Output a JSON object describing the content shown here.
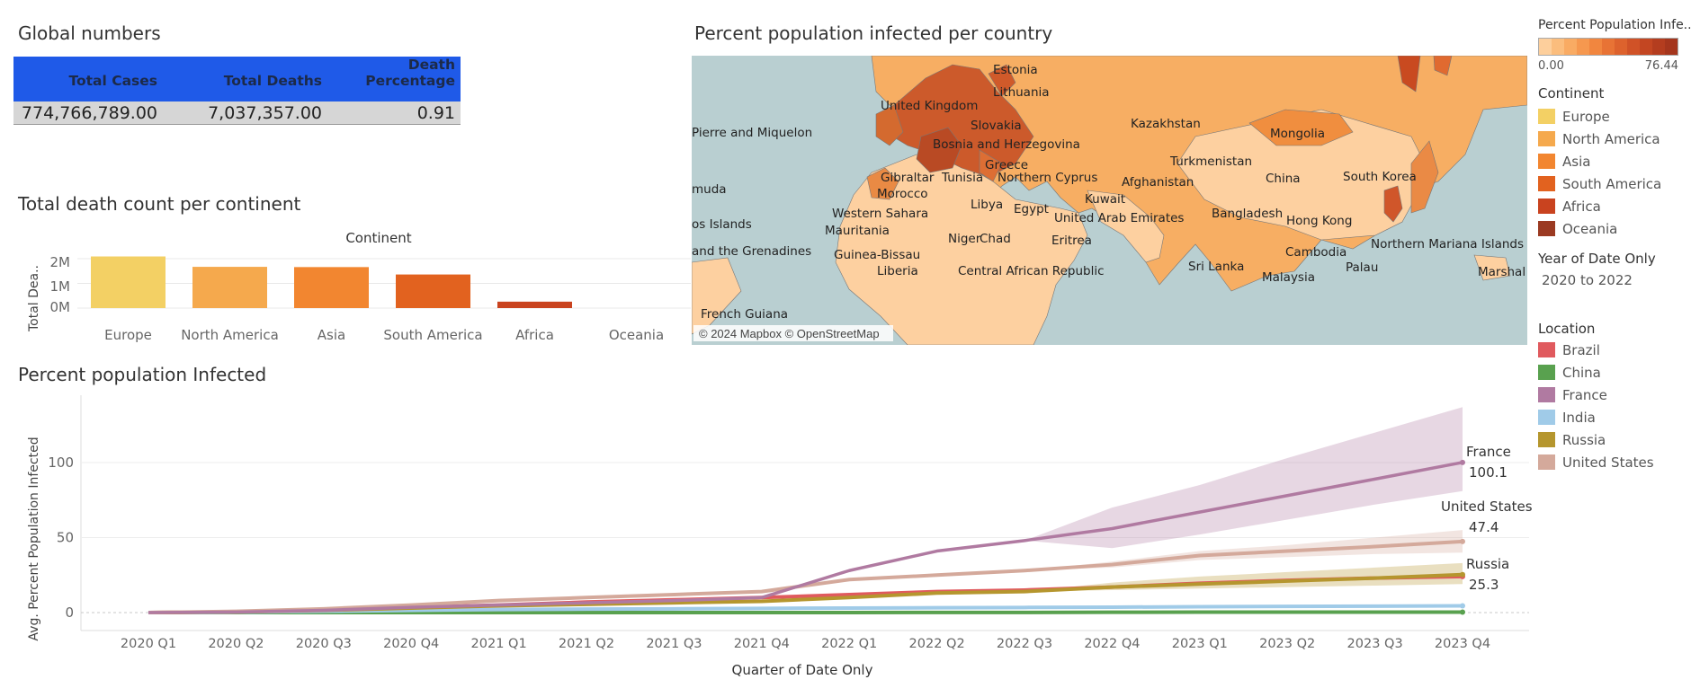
{
  "global": {
    "title": "Global numbers",
    "headers": [
      "Total Cases",
      "Total Deaths",
      "Death Percentage"
    ],
    "values": [
      "774,766,789.00",
      "7,037,357.00",
      "0.91"
    ]
  },
  "continent_chart": {
    "title": "Total death count per continent",
    "header": "Continent",
    "ylabel": "Total Dea..",
    "yticks": [
      "2M",
      "1M",
      "0M"
    ]
  },
  "map": {
    "title": "Percent population infected per country",
    "attribution": "© 2024 Mapbox © OpenStreetMap",
    "labels": [
      "Estonia",
      "Lithuania",
      "United Kingdom",
      "Slovakia",
      "Bosnia and Herzegovina",
      "Greece",
      "Kazakhstan",
      "Mongolia",
      "Turkmenistan",
      "Afghanistan",
      "China",
      "South Korea",
      "Gibraltar",
      "Tunisia",
      "Northern Cyprus",
      "Kuwait",
      "Morocco",
      "Libya",
      "Egypt",
      "United Arab Emirates",
      "Western Sahara",
      "Bangladesh",
      "Hong Kong",
      "Mauritania",
      "Niger",
      "Chad",
      "Eritrea",
      "Northern Mariana Islands",
      "Guinea-Bissau",
      "Cambodia",
      "Liberia",
      "Central African Republic",
      "Sri Lanka",
      "Palau",
      "Malaysia",
      "Marshal",
      "Pierre and Miquelon",
      "muda",
      "os Islands",
      "and the Grenadines",
      "French Guiana"
    ]
  },
  "line_chart": {
    "title": "Percent population Infected",
    "ylabel": "Avg. Percent Population Infected",
    "xlabel": "Quarter of Date Only",
    "end_labels": [
      {
        "name": "France",
        "value": "100.1"
      },
      {
        "name": "United States",
        "value": "47.4"
      },
      {
        "name": "Russia",
        "value": "25.3"
      }
    ]
  },
  "legend": {
    "color_title": "Percent Population Infe..",
    "color_min": "0.00",
    "color_max": "76.44",
    "continent_title": "Continent",
    "continents": [
      {
        "name": "Europe",
        "color": "#f3d064"
      },
      {
        "name": "North America",
        "color": "#f5a94d"
      },
      {
        "name": "Asia",
        "color": "#f28630"
      },
      {
        "name": "South America",
        "color": "#e2621f"
      },
      {
        "name": "Africa",
        "color": "#c9431f"
      },
      {
        "name": "Oceania",
        "color": "#9b3a22"
      }
    ],
    "year_title": "Year of Date Only",
    "year_value": "2020 to 2022",
    "location_title": "Location",
    "locations": [
      {
        "name": "Brazil",
        "color": "#e05a5e"
      },
      {
        "name": "China",
        "color": "#59a14f"
      },
      {
        "name": "France",
        "color": "#b07aa1"
      },
      {
        "name": "India",
        "color": "#a0cbe8"
      },
      {
        "name": "Russia",
        "color": "#b5962e"
      },
      {
        "name": "United States",
        "color": "#d4a99b"
      }
    ]
  },
  "chart_data": [
    {
      "type": "bar",
      "title": "Total death count per continent",
      "xlabel": "Continent",
      "ylabel": "Total Dea..",
      "categories": [
        "Europe",
        "North America",
        "Asia",
        "South America",
        "Africa",
        "Oceania"
      ],
      "values": [
        2090000,
        1670000,
        1660000,
        1360000,
        260000,
        0
      ],
      "colors": [
        "#f3d064",
        "#f5a94d",
        "#f28630",
        "#e2621f",
        "#c9431f",
        "#9b3a22"
      ],
      "ylim": [
        0,
        2400000
      ],
      "grid": true
    },
    {
      "type": "line",
      "title": "Percent population Infected",
      "xlabel": "Quarter of Date Only",
      "ylabel": "Avg. Percent Population Infected",
      "categories": [
        "2020 Q1",
        "2020 Q2",
        "2020 Q3",
        "2020 Q4",
        "2021 Q1",
        "2021 Q2",
        "2021 Q3",
        "2021 Q4",
        "2022 Q1",
        "2022 Q2",
        "2022 Q3",
        "2022 Q4",
        "2023 Q1",
        "2023 Q2",
        "2023 Q3",
        "2023 Q4"
      ],
      "yticks": [
        0,
        50,
        100
      ],
      "ylim": [
        -4,
        136
      ],
      "grid": true,
      "series": [
        {
          "name": "France",
          "color": "#b07aa1",
          "values": [
            0,
            0.3,
            1.5,
            3.5,
            5,
            6.5,
            8,
            10,
            28,
            41,
            48,
            56,
            67,
            78,
            89,
            100.1
          ],
          "band_upper": [
            null,
            null,
            null,
            null,
            null,
            null,
            null,
            null,
            null,
            null,
            48,
            70,
            85,
            103,
            120,
            137
          ],
          "band_lower": [
            null,
            null,
            null,
            null,
            null,
            null,
            null,
            null,
            null,
            null,
            48,
            43,
            52,
            62,
            72,
            81
          ]
        },
        {
          "name": "United States",
          "color": "#d4a99b",
          "values": [
            0,
            0.8,
            2.5,
            5,
            8,
            10,
            12,
            14,
            22,
            25,
            28,
            32,
            38,
            41,
            44,
            47.4
          ],
          "band_upper": [
            null,
            null,
            null,
            null,
            null,
            null,
            null,
            null,
            null,
            null,
            28,
            34,
            41,
            45,
            50,
            55
          ],
          "band_lower": [
            null,
            null,
            null,
            null,
            null,
            null,
            null,
            null,
            null,
            null,
            28,
            30,
            35,
            37,
            39,
            40
          ]
        },
        {
          "name": "Russia",
          "color": "#b5962e",
          "values": [
            0,
            0.4,
            1.5,
            3,
            4.5,
            5.5,
            6.5,
            7.5,
            10,
            13,
            14,
            17,
            19,
            21,
            23,
            25.3
          ],
          "band_upper": [
            null,
            null,
            null,
            null,
            null,
            null,
            null,
            null,
            null,
            null,
            14,
            20,
            24,
            27,
            30,
            33
          ],
          "band_lower": [
            null,
            null,
            null,
            null,
            null,
            null,
            null,
            null,
            null,
            null,
            14,
            15,
            16,
            17,
            18,
            19
          ]
        },
        {
          "name": "Brazil",
          "color": "#e05a5e",
          "values": [
            0,
            0.5,
            2,
            3.5,
            5,
            7,
            8.5,
            10,
            12,
            14,
            15,
            17,
            19.5,
            21.5,
            23,
            24
          ]
        },
        {
          "name": "India",
          "color": "#a0cbe8",
          "values": [
            0,
            0.2,
            0.8,
            1.5,
            2,
            2.3,
            2.5,
            2.8,
            3,
            3.2,
            3.4,
            3.6,
            3.9,
            4.1,
            4.3,
            4.5
          ]
        },
        {
          "name": "China",
          "color": "#59a14f",
          "values": [
            0,
            0.01,
            0.01,
            0.01,
            0.01,
            0.01,
            0.01,
            0.01,
            0.02,
            0.05,
            0.1,
            0.2,
            0.3,
            0.3,
            0.3,
            0.3
          ]
        }
      ]
    },
    {
      "type": "heatmap",
      "title": "Percent population infected per country",
      "color_scale": {
        "min": 0.0,
        "max": 76.44,
        "low_color": "#fdd4a4",
        "high_color": "#a53a1e"
      }
    }
  ]
}
